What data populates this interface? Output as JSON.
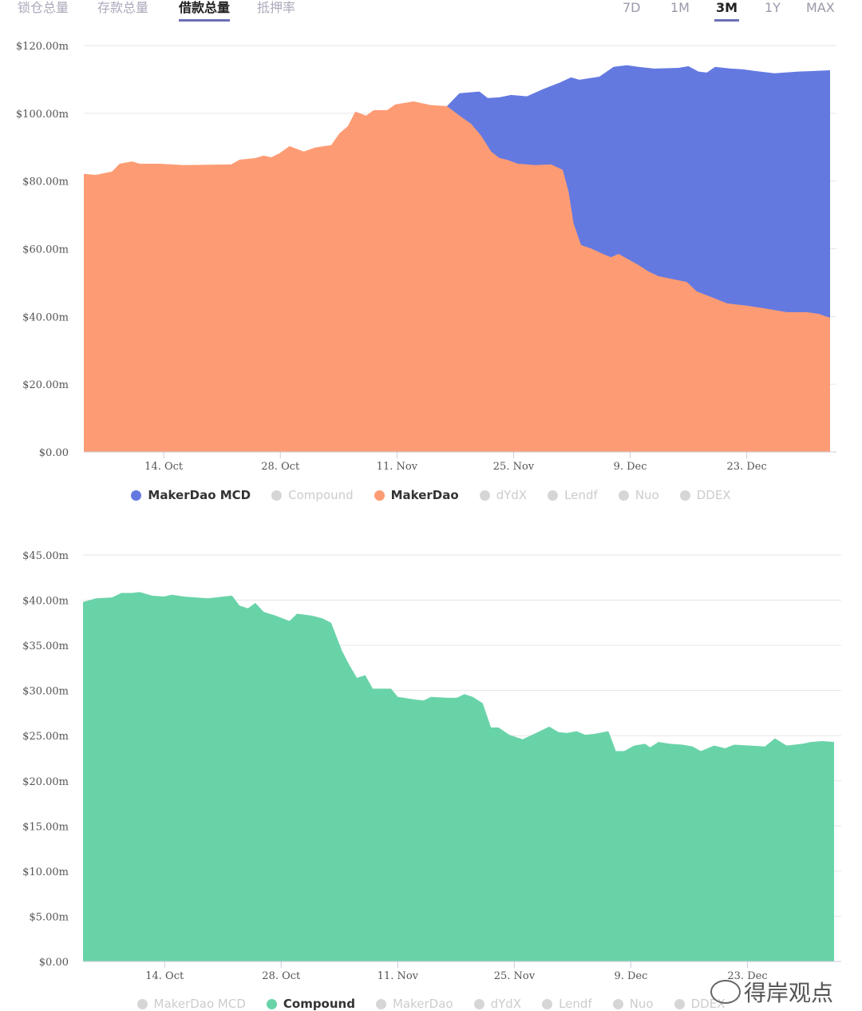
{
  "tabs": [
    {
      "label": "锁仓总量",
      "active": false
    },
    {
      "label": "存款总量",
      "active": false
    },
    {
      "label": "借款总量",
      "active": true
    },
    {
      "label": "抵押率",
      "active": false
    }
  ],
  "ranges": [
    {
      "label": "7D",
      "active": false
    },
    {
      "label": "1M",
      "active": false
    },
    {
      "label": "3M",
      "active": true
    },
    {
      "label": "1Y",
      "active": false
    },
    {
      "label": "MAX",
      "active": false
    }
  ],
  "legend": [
    {
      "label": "MakerDao MCD",
      "color": "#6479e0"
    },
    {
      "label": "Compound",
      "color": "#69d3a8"
    },
    {
      "label": "MakerDao",
      "color": "#fd9c74"
    },
    {
      "label": "dYdX",
      "color": "#d6d6d6"
    },
    {
      "label": "Lendf",
      "color": "#d6d6d6"
    },
    {
      "label": "Nuo",
      "color": "#d6d6d6"
    },
    {
      "label": "DDEX",
      "color": "#d6d6d6"
    }
  ],
  "watermark": "得岸观点",
  "chart_data": [
    {
      "type": "area",
      "stacked": true,
      "x_unit": "days since 1 Oct",
      "xlim": [
        3.4,
        93
      ],
      "x_ticks": [
        {
          "day": 13,
          "label": "14. Oct"
        },
        {
          "day": 27,
          "label": "28. Oct"
        },
        {
          "day": 41,
          "label": "11. Nov"
        },
        {
          "day": 55,
          "label": "25. Nov"
        },
        {
          "day": 69,
          "label": "9. Dec"
        },
        {
          "day": 83,
          "label": "23. Dec"
        }
      ],
      "ylim": [
        0,
        120
      ],
      "y_ticks": [
        {
          "v": 0,
          "label": "$0.00"
        },
        {
          "v": 20,
          "label": "$20.00m"
        },
        {
          "v": 40,
          "label": "$40.00m"
        },
        {
          "v": 60,
          "label": "$60.00m"
        },
        {
          "v": 80,
          "label": "$80.00m"
        },
        {
          "v": 100,
          "label": "$100.00m"
        },
        {
          "v": 120,
          "label": "$120.00m"
        }
      ],
      "grid": true,
      "legend_active": [
        "MakerDao MCD",
        "MakerDao"
      ],
      "series": [
        {
          "name": "MakerDao",
          "color": "#fd9c74",
          "points": [
            [
              3.4,
              82.1
            ],
            [
              4.85,
              81.8
            ],
            [
              6.8,
              82.8
            ],
            [
              7.7,
              85.1
            ],
            [
              9.2,
              85.8
            ],
            [
              10.1,
              85.1
            ],
            [
              12.5,
              85.1
            ],
            [
              15.4,
              84.7
            ],
            [
              21.1,
              84.9
            ],
            [
              22.1,
              86.3
            ],
            [
              24,
              86.8
            ],
            [
              25,
              87.5
            ],
            [
              25.9,
              87
            ],
            [
              26.9,
              88.2
            ],
            [
              28.1,
              90.3
            ],
            [
              29.8,
              88.7
            ],
            [
              31.2,
              89.9
            ],
            [
              33.1,
              90.6
            ],
            [
              34.1,
              94.1
            ],
            [
              35.1,
              96.2
            ],
            [
              36,
              100.5
            ],
            [
              37.3,
              99.3
            ],
            [
              38.2,
              100.9
            ],
            [
              39.8,
              100.9
            ],
            [
              40.8,
              102.6
            ],
            [
              43,
              103.5
            ],
            [
              45.1,
              102.4
            ],
            [
              47,
              102.1
            ],
            [
              48.5,
              99.3
            ],
            [
              49.9,
              96.9
            ],
            [
              51.1,
              93.4
            ],
            [
              52.3,
              88.7
            ],
            [
              53.3,
              86.8
            ],
            [
              54.2,
              86.3
            ],
            [
              55.5,
              85.1
            ],
            [
              57.6,
              84.7
            ],
            [
              59.5,
              84.9
            ],
            [
              60.9,
              83.3
            ],
            [
              61.6,
              76.9
            ],
            [
              62.2,
              67.5
            ],
            [
              63.1,
              61.1
            ],
            [
              64.3,
              60.1
            ],
            [
              65.7,
              58.5
            ],
            [
              66.7,
              57.5
            ],
            [
              67.6,
              58.5
            ],
            [
              68.6,
              57.1
            ],
            [
              70,
              55.2
            ],
            [
              71.2,
              53.3
            ],
            [
              72.4,
              51.9
            ],
            [
              74.4,
              50.9
            ],
            [
              75.8,
              50.2
            ],
            [
              77,
              47.4
            ],
            [
              79.2,
              45.3
            ],
            [
              80.6,
              43.9
            ],
            [
              81.6,
              43.6
            ],
            [
              83,
              43.2
            ],
            [
              84.9,
              42.5
            ],
            [
              87.8,
              41.3
            ],
            [
              90.2,
              41.3
            ],
            [
              91.6,
              40.8
            ],
            [
              93,
              39.6
            ]
          ]
        },
        {
          "name": "MakerDao MCD (stacked total)",
          "color": "#6479e0",
          "points": [
            [
              47,
              102.1
            ],
            [
              48.5,
              105.9
            ],
            [
              50.9,
              106.4
            ],
            [
              51.9,
              104.5
            ],
            [
              53.3,
              104.7
            ],
            [
              54.7,
              105.4
            ],
            [
              56.6,
              105
            ],
            [
              58.5,
              107.1
            ],
            [
              60.5,
              109
            ],
            [
              61.9,
              110.6
            ],
            [
              62.9,
              109.9
            ],
            [
              65.3,
              110.8
            ],
            [
              67,
              113.7
            ],
            [
              68.6,
              114.2
            ],
            [
              70,
              113.7
            ],
            [
              71.9,
              113.2
            ],
            [
              74.8,
              113.4
            ],
            [
              76,
              113.9
            ],
            [
              77.2,
              112.3
            ],
            [
              78.2,
              112
            ],
            [
              79.2,
              113.7
            ],
            [
              81.1,
              113.2
            ],
            [
              82.5,
              113
            ],
            [
              84,
              112.5
            ],
            [
              86.3,
              111.8
            ],
            [
              89.2,
              112.3
            ],
            [
              93,
              112.7
            ]
          ]
        }
      ]
    },
    {
      "type": "area",
      "x_unit": "days since 1 Oct",
      "xlim": [
        3.2,
        93.4
      ],
      "x_ticks": [
        {
          "day": 13,
          "label": "14. Oct"
        },
        {
          "day": 27,
          "label": "28. Oct"
        },
        {
          "day": 41,
          "label": "11. Nov"
        },
        {
          "day": 55,
          "label": "25. Nov"
        },
        {
          "day": 69,
          "label": "9. Dec"
        },
        {
          "day": 83,
          "label": "23. Dec"
        }
      ],
      "ylim": [
        0,
        45
      ],
      "y_ticks": [
        {
          "v": 0,
          "label": "$0.00"
        },
        {
          "v": 5,
          "label": "$5.00m"
        },
        {
          "v": 10,
          "label": "$10.00m"
        },
        {
          "v": 15,
          "label": "$15.00m"
        },
        {
          "v": 20,
          "label": "$20.00m"
        },
        {
          "v": 25,
          "label": "$25.00m"
        },
        {
          "v": 30,
          "label": "$30.00m"
        },
        {
          "v": 35,
          "label": "$35.00m"
        },
        {
          "v": 40,
          "label": "$40.00m"
        },
        {
          "v": 45,
          "label": "$45.00m"
        }
      ],
      "grid": true,
      "legend_active": [
        "Compound"
      ],
      "series": [
        {
          "name": "Compound",
          "color": "#69d3a8",
          "points": [
            [
              3.2,
              39.8
            ],
            [
              4.75,
              40.2
            ],
            [
              6.7,
              40.3
            ],
            [
              7.8,
              40.8
            ],
            [
              9.1,
              40.8
            ],
            [
              10,
              40.9
            ],
            [
              11.5,
              40.5
            ],
            [
              12.9,
              40.4
            ],
            [
              13.9,
              40.6
            ],
            [
              15.3,
              40.4
            ],
            [
              18.2,
              40.2
            ],
            [
              21.1,
              40.5
            ],
            [
              22,
              39.4
            ],
            [
              23,
              39.1
            ],
            [
              23.9,
              39.7
            ],
            [
              24.9,
              38.7
            ],
            [
              26.3,
              38.3
            ],
            [
              28,
              37.7
            ],
            [
              28.9,
              38.5
            ],
            [
              30.6,
              38.3
            ],
            [
              31.9,
              38
            ],
            [
              33,
              37.5
            ],
            [
              34.3,
              34.4
            ],
            [
              35.2,
              32.8
            ],
            [
              36.1,
              31.4
            ],
            [
              37.1,
              31.7
            ],
            [
              38,
              30.2
            ],
            [
              40.2,
              30.2
            ],
            [
              41,
              29.3
            ],
            [
              43.1,
              29
            ],
            [
              44.1,
              28.9
            ],
            [
              45,
              29.3
            ],
            [
              46.9,
              29.2
            ],
            [
              48.1,
              29.2
            ],
            [
              49,
              29.6
            ],
            [
              50,
              29.3
            ],
            [
              51.2,
              28.6
            ],
            [
              52.2,
              25.9
            ],
            [
              53.1,
              25.9
            ],
            [
              54.4,
              25.1
            ],
            [
              56,
              24.6
            ],
            [
              57.6,
              25.3
            ],
            [
              59.2,
              26
            ],
            [
              60.3,
              25.4
            ],
            [
              61.3,
              25.3
            ],
            [
              62.5,
              25.5
            ],
            [
              63.5,
              25.1
            ],
            [
              64.6,
              25.2
            ],
            [
              66.3,
              25.5
            ],
            [
              67.2,
              23.3
            ],
            [
              68.2,
              23.3
            ],
            [
              69.4,
              23.9
            ],
            [
              70.7,
              24.1
            ],
            [
              71.3,
              23.7
            ],
            [
              72.3,
              24.3
            ],
            [
              73.7,
              24.1
            ],
            [
              75.2,
              24
            ],
            [
              76.4,
              23.8
            ],
            [
              77.4,
              23.3
            ],
            [
              79,
              23.9
            ],
            [
              80.3,
              23.6
            ],
            [
              81.4,
              24
            ],
            [
              83.3,
              23.9
            ],
            [
              85.1,
              23.8
            ],
            [
              86.3,
              24.7
            ],
            [
              87.7,
              23.9
            ],
            [
              89.6,
              24.1
            ],
            [
              90.6,
              24.3
            ],
            [
              92,
              24.4
            ],
            [
              93.4,
              24.3
            ]
          ]
        }
      ]
    }
  ]
}
